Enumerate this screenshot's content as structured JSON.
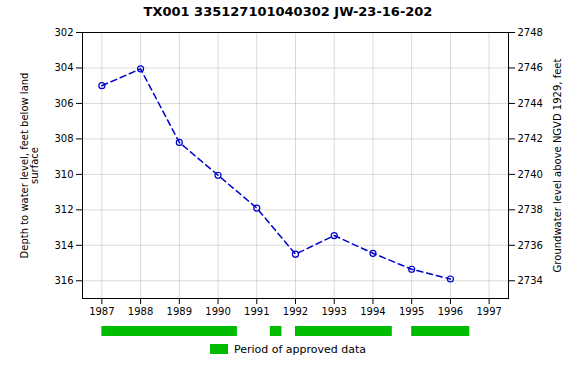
{
  "chart_data": {
    "type": "line",
    "title": "TX001 335127101040302 JW-23-16-202",
    "x": [
      1987,
      1988,
      1989,
      1990,
      1991,
      1992,
      1993,
      1994,
      1995,
      1996
    ],
    "values": [
      305.0,
      304.05,
      308.2,
      310.05,
      311.9,
      314.5,
      313.45,
      314.45,
      315.35,
      315.9
    ],
    "color": "#0000cc",
    "marker": "circle",
    "line_style": "dashed",
    "xlim": [
      1986.5,
      1997.5
    ],
    "xticks": [
      1987,
      1988,
      1989,
      1990,
      1991,
      1992,
      1993,
      1994,
      1995,
      1996,
      1997
    ],
    "ylabel": "Depth to water level, feet below land\nsurface",
    "ylim": [
      317,
      302
    ],
    "yticks": [
      302,
      304,
      306,
      308,
      310,
      312,
      314,
      316
    ],
    "y2label": "Groundwater level above NGVD 1929, feet",
    "y2lim": [
      2733,
      2748
    ],
    "y2ticks": [
      2748,
      2746,
      2744,
      2742,
      2740,
      2738,
      2736,
      2734
    ],
    "grid": true,
    "approved_periods": {
      "name": "Period of approved data",
      "color": "#00bb00",
      "segments": [
        [
          1987.0,
          1990.5
        ],
        [
          1991.35,
          1991.65
        ],
        [
          1992.0,
          1994.5
        ],
        [
          1995.0,
          1996.5
        ]
      ]
    },
    "legend": "bottom"
  }
}
